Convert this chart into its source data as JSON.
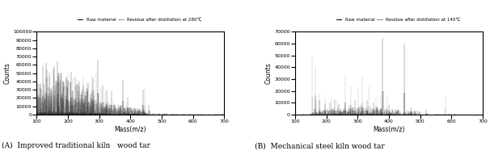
{
  "panel_A": {
    "title": "(A)  Improved traditional kiln   wood tar",
    "legend_label1": "Raw material",
    "legend_label2": "Residue after distillation at 280℃",
    "xlabel": "Mass(m/z)",
    "ylabel": "Counts",
    "xlim": [
      100,
      700
    ],
    "ylim": [
      0,
      100000
    ],
    "yticks": [
      0,
      10000,
      20000,
      30000,
      40000,
      50000,
      60000,
      70000,
      80000,
      90000,
      100000
    ],
    "xticks": [
      100,
      200,
      300,
      400,
      500,
      600,
      700
    ],
    "color_raw": "#111111",
    "color_residue": "#999999"
  },
  "panel_B": {
    "title": "(B)  Mechanical steel kiln wood tar",
    "legend_label1": "Raw material",
    "legend_label2": "Residue after distillation at 140℃",
    "xlabel": "Mass(m/z)",
    "ylabel": "Counts",
    "xlim": [
      100,
      700
    ],
    "ylim": [
      0,
      70000
    ],
    "yticks": [
      0,
      10000,
      20000,
      30000,
      40000,
      50000,
      60000,
      70000
    ],
    "xticks": [
      100,
      200,
      300,
      400,
      500,
      600,
      700
    ],
    "color_raw": "#111111",
    "color_residue": "#999999"
  },
  "figure_bg": "#ffffff"
}
